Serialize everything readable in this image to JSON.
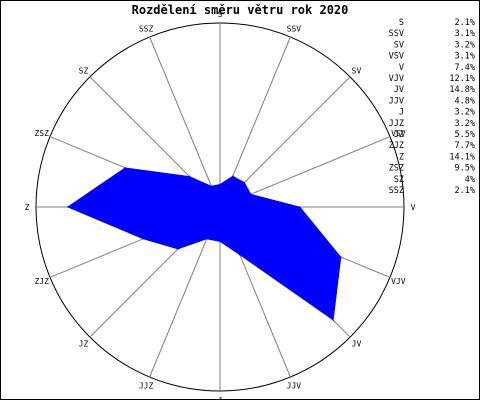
{
  "chart_data": {
    "type": "radar",
    "title": "Rozdělení směru větru rok 2020",
    "directions": [
      "S",
      "SSV",
      "SV",
      "VSV",
      "V",
      "VJV",
      "JV",
      "JJV",
      "J",
      "JJZ",
      "JZ",
      "ZJZ",
      "Z",
      "ZSZ",
      "SZ",
      "SSZ"
    ],
    "values": [
      2.1,
      3.1,
      3.2,
      3.1,
      7.4,
      12.1,
      14.8,
      4.8,
      3.2,
      3.2,
      5.5,
      7.7,
      14.1,
      9.5,
      4,
      2.1
    ],
    "unit": "%",
    "legend": [
      {
        "dir": "S",
        "value": "2.1%"
      },
      {
        "dir": "SSV",
        "value": "3.1%"
      },
      {
        "dir": "SV",
        "value": "3.2%"
      },
      {
        "dir": "VSV",
        "value": "3.1%"
      },
      {
        "dir": "V",
        "value": "7.4%"
      },
      {
        "dir": "VJV",
        "value": "12.1%"
      },
      {
        "dir": "JV",
        "value": "14.8%"
      },
      {
        "dir": "JJV",
        "value": "4.8%"
      },
      {
        "dir": "J",
        "value": "3.2%"
      },
      {
        "dir": "JJZ",
        "value": "3.2%"
      },
      {
        "dir": "JZ",
        "value": "5.5%"
      },
      {
        "dir": "ZJZ",
        "value": "7.7%"
      },
      {
        "dir": "Z",
        "value": "14.1%"
      },
      {
        "dir": "ZSZ",
        "value": "9.5%"
      },
      {
        "dir": "SZ",
        "value": "4%"
      },
      {
        "dir": "SSZ",
        "value": "2.1%"
      }
    ],
    "legend_position": "top-right",
    "rmax": 17,
    "fill_color": "#0000ff",
    "grid": true
  }
}
